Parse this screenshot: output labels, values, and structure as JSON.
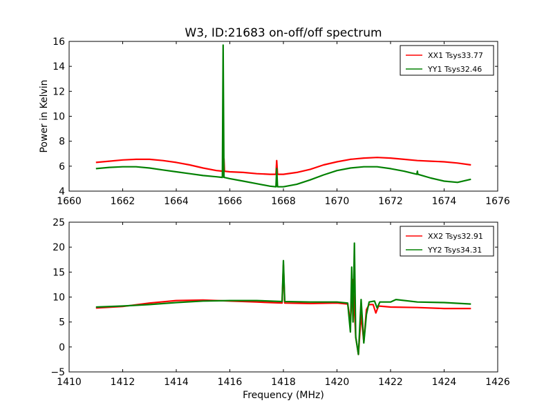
{
  "chart_data": [
    {
      "type": "line",
      "title": "W3, ID:21683 on-off/off spectrum",
      "xlabel": "",
      "ylabel": "Power in Kelvin",
      "xlim": [
        1660,
        1676
      ],
      "ylim": [
        4,
        16
      ],
      "xticks": [
        "1660",
        "1662",
        "1664",
        "1666",
        "1668",
        "1670",
        "1672",
        "1674",
        "1676"
      ],
      "yticks": [
        "4",
        "6",
        "8",
        "10",
        "12",
        "14",
        "16"
      ],
      "legend_position": "top-right",
      "grid": false,
      "series": [
        {
          "name": "XX1 Tsys33.77",
          "color": "#ff0000",
          "points": [
            [
              1661.0,
              6.3
            ],
            [
              1661.5,
              6.4
            ],
            [
              1662.0,
              6.5
            ],
            [
              1662.5,
              6.55
            ],
            [
              1663.0,
              6.55
            ],
            [
              1663.5,
              6.45
            ],
            [
              1664.0,
              6.3
            ],
            [
              1664.5,
              6.1
            ],
            [
              1665.0,
              5.85
            ],
            [
              1665.5,
              5.65
            ],
            [
              1665.75,
              5.6
            ],
            [
              1665.78,
              6.6
            ],
            [
              1665.8,
              5.6
            ],
            [
              1666.0,
              5.55
            ],
            [
              1666.5,
              5.5
            ],
            [
              1667.0,
              5.4
            ],
            [
              1667.5,
              5.35
            ],
            [
              1667.72,
              5.35
            ],
            [
              1667.75,
              6.45
            ],
            [
              1667.78,
              5.35
            ],
            [
              1668.0,
              5.35
            ],
            [
              1668.5,
              5.5
            ],
            [
              1669.0,
              5.75
            ],
            [
              1669.5,
              6.1
            ],
            [
              1670.0,
              6.35
            ],
            [
              1670.5,
              6.55
            ],
            [
              1671.0,
              6.65
            ],
            [
              1671.5,
              6.7
            ],
            [
              1672.0,
              6.65
            ],
            [
              1672.5,
              6.55
            ],
            [
              1673.0,
              6.45
            ],
            [
              1673.5,
              6.4
            ],
            [
              1674.0,
              6.35
            ],
            [
              1674.5,
              6.25
            ],
            [
              1675.0,
              6.1
            ]
          ]
        },
        {
          "name": "YY1 Tsys32.46",
          "color": "#008000",
          "points": [
            [
              1661.0,
              5.8
            ],
            [
              1661.5,
              5.9
            ],
            [
              1662.0,
              5.95
            ],
            [
              1662.5,
              5.95
            ],
            [
              1663.0,
              5.85
            ],
            [
              1663.5,
              5.7
            ],
            [
              1664.0,
              5.55
            ],
            [
              1664.5,
              5.4
            ],
            [
              1665.0,
              5.25
            ],
            [
              1665.5,
              5.15
            ],
            [
              1665.72,
              5.1
            ],
            [
              1665.75,
              15.7
            ],
            [
              1665.78,
              5.1
            ],
            [
              1666.0,
              5.0
            ],
            [
              1666.5,
              4.8
            ],
            [
              1667.0,
              4.6
            ],
            [
              1667.5,
              4.4
            ],
            [
              1667.72,
              4.35
            ],
            [
              1667.75,
              5.8
            ],
            [
              1667.78,
              4.35
            ],
            [
              1668.0,
              4.35
            ],
            [
              1668.5,
              4.55
            ],
            [
              1669.0,
              4.9
            ],
            [
              1669.5,
              5.3
            ],
            [
              1670.0,
              5.65
            ],
            [
              1670.5,
              5.85
            ],
            [
              1671.0,
              5.95
            ],
            [
              1671.5,
              5.95
            ],
            [
              1672.0,
              5.8
            ],
            [
              1672.5,
              5.6
            ],
            [
              1672.98,
              5.35
            ],
            [
              1673.0,
              5.6
            ],
            [
              1673.02,
              5.35
            ],
            [
              1673.5,
              5.05
            ],
            [
              1674.0,
              4.8
            ],
            [
              1674.5,
              4.7
            ],
            [
              1675.0,
              4.95
            ]
          ]
        }
      ]
    },
    {
      "type": "line",
      "title": "",
      "xlabel": "Frequency (MHz)",
      "ylabel": "",
      "xlim": [
        1410,
        1426
      ],
      "ylim": [
        -5,
        25
      ],
      "xticks": [
        "1410",
        "1412",
        "1414",
        "1416",
        "1418",
        "1420",
        "1422",
        "1424",
        "1426"
      ],
      "yticks": [
        "−5",
        "0",
        "5",
        "10",
        "15",
        "20",
        "25"
      ],
      "legend_position": "top-right",
      "grid": false,
      "series": [
        {
          "name": "XX2 Tsys32.91",
          "color": "#ff0000",
          "points": [
            [
              1411.0,
              7.8
            ],
            [
              1412.0,
              8.1
            ],
            [
              1413.0,
              8.8
            ],
            [
              1414.0,
              9.3
            ],
            [
              1415.0,
              9.4
            ],
            [
              1416.0,
              9.2
            ],
            [
              1417.0,
              9.0
            ],
            [
              1417.95,
              8.8
            ],
            [
              1418.0,
              16.5
            ],
            [
              1418.05,
              8.8
            ],
            [
              1419.0,
              8.7
            ],
            [
              1420.0,
              8.8
            ],
            [
              1420.4,
              8.6
            ],
            [
              1420.5,
              5.0
            ],
            [
              1420.6,
              13.5
            ],
            [
              1420.7,
              2.0
            ],
            [
              1420.8,
              -1.5
            ],
            [
              1420.9,
              6.5
            ],
            [
              1421.0,
              1.0
            ],
            [
              1421.1,
              7.5
            ],
            [
              1421.2,
              8.5
            ],
            [
              1421.35,
              8.5
            ],
            [
              1421.45,
              6.8
            ],
            [
              1421.55,
              8.2
            ],
            [
              1422.0,
              8.0
            ],
            [
              1423.0,
              7.9
            ],
            [
              1424.0,
              7.7
            ],
            [
              1425.0,
              7.7
            ]
          ]
        },
        {
          "name": "YY2 Tsys34.31",
          "color": "#008000",
          "points": [
            [
              1411.0,
              8.0
            ],
            [
              1412.0,
              8.2
            ],
            [
              1413.0,
              8.5
            ],
            [
              1414.0,
              8.9
            ],
            [
              1415.0,
              9.2
            ],
            [
              1416.0,
              9.3
            ],
            [
              1417.0,
              9.3
            ],
            [
              1417.95,
              9.1
            ],
            [
              1418.0,
              17.3
            ],
            [
              1418.05,
              9.1
            ],
            [
              1419.0,
              9.0
            ],
            [
              1420.0,
              9.0
            ],
            [
              1420.4,
              8.8
            ],
            [
              1420.5,
              3.0
            ],
            [
              1420.55,
              16.0
            ],
            [
              1420.6,
              5.0
            ],
            [
              1420.65,
              20.8
            ],
            [
              1420.7,
              2.0
            ],
            [
              1420.8,
              -1.5
            ],
            [
              1420.9,
              9.5
            ],
            [
              1421.0,
              0.8
            ],
            [
              1421.1,
              6.5
            ],
            [
              1421.2,
              9.0
            ],
            [
              1421.4,
              9.2
            ],
            [
              1421.5,
              7.8
            ],
            [
              1421.6,
              9.0
            ],
            [
              1422.0,
              9.0
            ],
            [
              1422.2,
              9.5
            ],
            [
              1423.0,
              9.0
            ],
            [
              1424.0,
              8.9
            ],
            [
              1425.0,
              8.6
            ]
          ]
        }
      ]
    }
  ]
}
